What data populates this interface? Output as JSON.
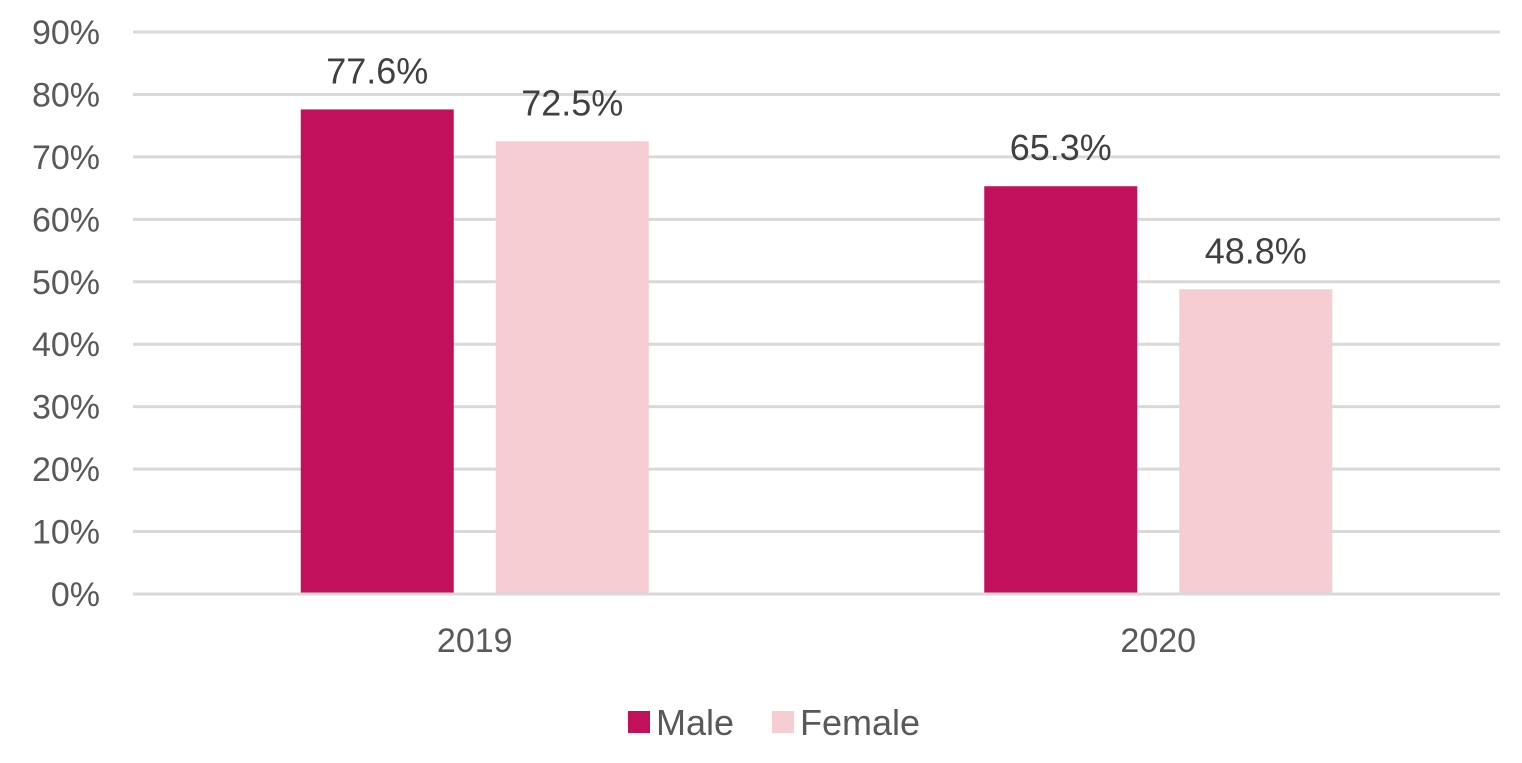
{
  "chart_data": {
    "type": "bar",
    "categories": [
      "2019",
      "2020"
    ],
    "series": [
      {
        "name": "Male",
        "values": [
          77.6,
          65.3
        ],
        "color": "#C2105A"
      },
      {
        "name": "Female",
        "values": [
          72.5,
          48.8
        ],
        "color": "#F6CDD3"
      }
    ],
    "data_labels": [
      [
        "77.6%",
        "65.3%"
      ],
      [
        "72.5%",
        "48.8%"
      ]
    ],
    "y_ticks": [
      "0%",
      "10%",
      "20%",
      "30%",
      "40%",
      "50%",
      "60%",
      "70%",
      "80%",
      "90%"
    ],
    "ylim": [
      0,
      90
    ],
    "y_tick_step": 10,
    "grid": true,
    "legend_position": "bottom-center",
    "title": "",
    "xlabel": "",
    "ylabel": ""
  }
}
